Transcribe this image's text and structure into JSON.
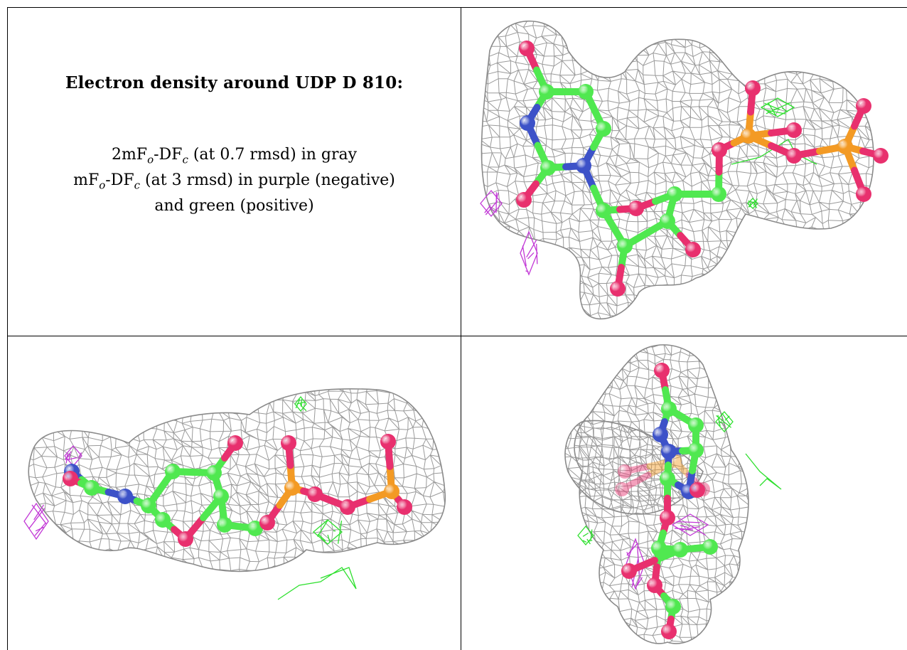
{
  "caption": {
    "title": "Electron density around UDP D 810:",
    "line1": {
      "a": "2mF",
      "a_sub": "o",
      "b": "-DF",
      "b_sub": "c",
      "rest": " (at 0.7 rmsd) in gray"
    },
    "line2": {
      "a": "mF",
      "a_sub": "o",
      "b": "-DF",
      "b_sub": "c",
      "rest": " (at 3 rmsd) in purple (negative)"
    },
    "line3": "and green (positive)"
  },
  "colors": {
    "mesh_2fofc": "#9a9a9a",
    "mesh_fofc_negative": "#c238d6",
    "mesh_fofc_positive": "#2fe02f",
    "carbon": "#50e850",
    "oxygen": "#e8306e",
    "nitrogen": "#3d52c8",
    "phosphorus": "#f39a24",
    "grid": "#000000"
  }
}
